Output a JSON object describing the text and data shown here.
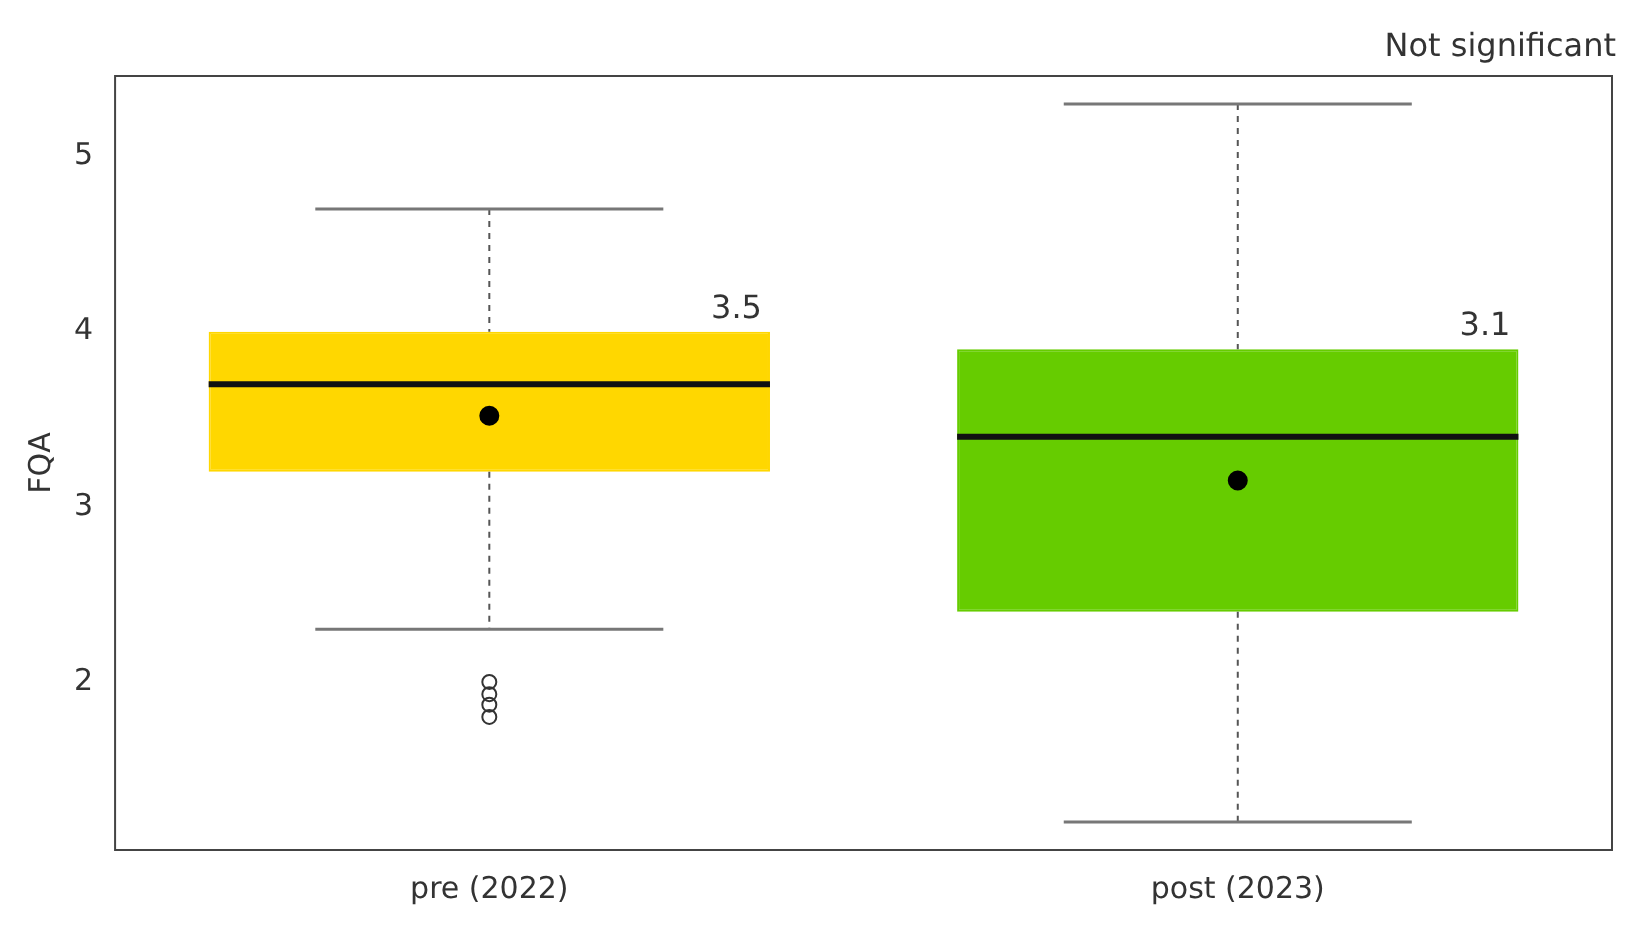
{
  "chart_data": {
    "type": "box",
    "categories": [
      "pre (2022)",
      "post (2023)"
    ],
    "ylabel": "FQA",
    "ylim": [
      1.04,
      5.46
    ],
    "yticks": [
      2,
      3,
      4,
      5
    ],
    "grid": false,
    "legend": false,
    "colors": [
      "#ffd700",
      "#66cc00"
    ],
    "boxes": [
      {
        "low": 2.3,
        "q1": 3.2,
        "median": 3.7,
        "q3": 4.0,
        "high": 4.7,
        "mean": 3.52,
        "outliers": [
          2.0,
          1.93,
          1.87,
          1.8
        ]
      },
      {
        "low": 1.2,
        "q1": 2.4,
        "median": 3.4,
        "q3": 3.9,
        "high": 5.3,
        "mean": 3.15
      }
    ],
    "annotations": [
      "Not significant",
      "3.5",
      "3.1"
    ]
  }
}
